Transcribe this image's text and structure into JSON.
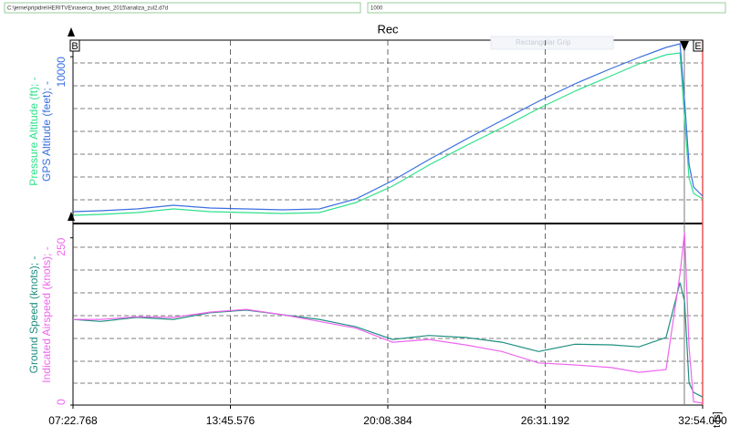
{
  "toolbar": {
    "file_path": "C:\\jerne\\pripidre\\HERITVE\\naserca_bovec_2015\\analiza_zul2.d7d",
    "value_field": "1000"
  },
  "title": "Rec",
  "markers": {
    "begin": "B",
    "end": "E"
  },
  "tooltip": "Rectangular Grip",
  "chart_data": [
    {
      "type": "line",
      "x": [
        443,
        510,
        598,
        687,
        776,
        864,
        953,
        1042,
        1131,
        1220,
        1308,
        1397,
        1486,
        1575,
        1663,
        1752,
        1819,
        1885,
        1919,
        1930,
        1941,
        1952,
        1974
      ],
      "xlim": [
        442.768,
        1974
      ],
      "ylim": [
        0,
        11000
      ],
      "yticks": [
        10000
      ],
      "series": [
        {
          "name": "Pressure Altitude (ft); -",
          "color": "#2fe08c",
          "values": [
            440,
            495,
            605,
            825,
            660,
            605,
            550,
            605,
            1210,
            2200,
            3465,
            4620,
            5720,
            6875,
            7920,
            8855,
            9570,
            10120,
            10230,
            6270,
            2695,
            1760,
            1430
          ]
        },
        {
          "name": "GPS Altitude (feet); -",
          "color": "#3a6fe0",
          "values": [
            660,
            715,
            825,
            1045,
            880,
            825,
            770,
            825,
            1430,
            2530,
            3795,
            5005,
            6160,
            7315,
            8360,
            9295,
            9955,
            10560,
            10780,
            7370,
            3520,
            2145,
            1595
          ]
        }
      ]
    },
    {
      "type": "line",
      "x": [
        443,
        510,
        598,
        687,
        776,
        864,
        953,
        1042,
        1131,
        1220,
        1308,
        1397,
        1486,
        1575,
        1663,
        1752,
        1819,
        1885,
        1919,
        1930,
        1941,
        1952,
        1974
      ],
      "xlim": [
        442.768,
        1974
      ],
      "ylim": [
        0,
        270
      ],
      "yticks": [
        0,
        250
      ],
      "xticks": [
        {
          "value": 442.768,
          "label": "07:22.768"
        },
        {
          "value": 825.576,
          "label": "13:45.576"
        },
        {
          "value": 1208.384,
          "label": "20:08.384"
        },
        {
          "value": 1591.192,
          "label": "26:31.192"
        },
        {
          "value": 1974,
          "label": "32:54.000"
        }
      ],
      "x_label": "t [s]",
      "series": [
        {
          "name": "Ground Speed (knots); -",
          "color": "#1f8f80",
          "values": [
            128,
            125,
            131,
            128,
            138,
            142,
            135,
            128,
            117,
            98,
            104,
            101,
            94,
            80,
            91,
            90,
            87,
            101,
            183,
            155,
            33,
            19,
            12
          ]
        },
        {
          "name": "Indicated Airspeed (knots); -",
          "color": "#ee66ee",
          "values": [
            128,
            128,
            132,
            131,
            139,
            143,
            135,
            125,
            115,
            94,
            98,
            90,
            80,
            63,
            60,
            56,
            49,
            53,
            196,
            258,
            87,
            5,
            3
          ]
        }
      ]
    }
  ]
}
